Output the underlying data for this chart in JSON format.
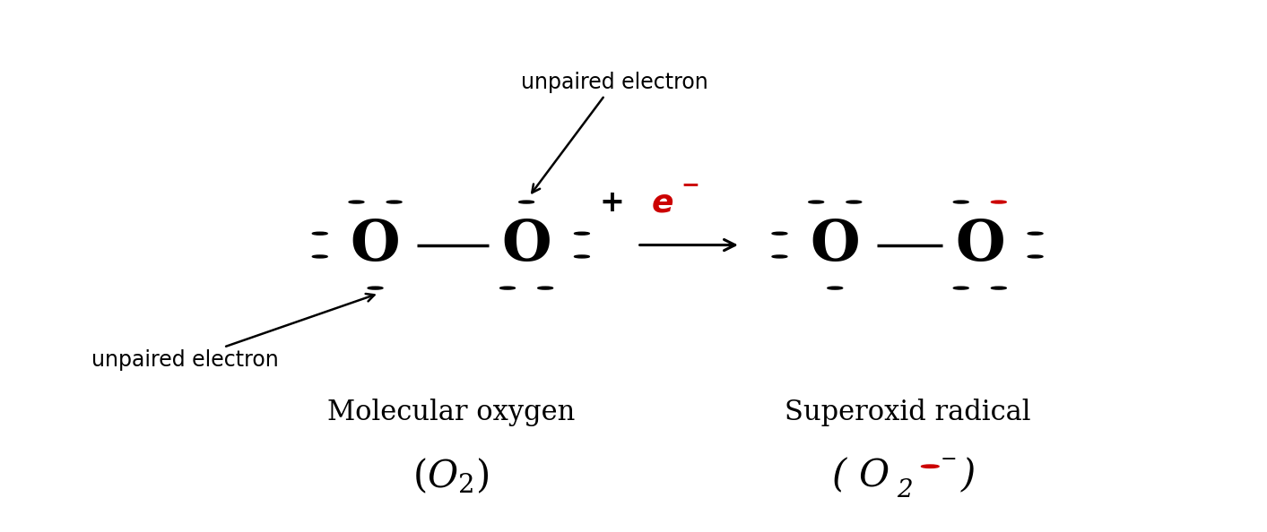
{
  "bg_color": "#ffffff",
  "fig_width": 14.13,
  "fig_height": 5.94,
  "dpi": 100,
  "label_unpaired_top": "unpaired electron",
  "label_unpaired_bottom": "unpaired electron",
  "label_mol_oxygen": "Molecular oxygen",
  "label_superoxid": "Superoxid radical",
  "dot_color": "#000000",
  "red_dot_color": "#cc0000",
  "O1x": 0.295,
  "O1y": 0.54,
  "O2x": 0.415,
  "O2y": 0.54,
  "O3x": 0.66,
  "O3y": 0.54,
  "O4x": 0.775,
  "O4y": 0.54,
  "font_size_O": 46
}
